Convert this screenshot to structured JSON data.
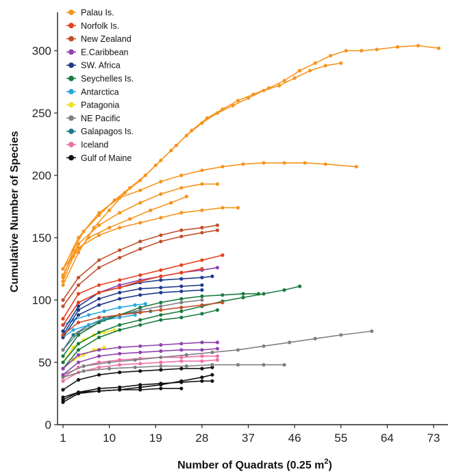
{
  "chart_data": {
    "type": "line",
    "xlabel": "Number of Quadrats (0.25 m",
    "xlabel_sup": "2",
    "xlabel_end": ")",
    "ylabel": "Cumulative Number of Species",
    "xlim": [
      0,
      75
    ],
    "ylim": [
      0,
      310
    ],
    "x_ticks": [
      1,
      10,
      19,
      28,
      37,
      46,
      55,
      64,
      73
    ],
    "y_ticks": [
      0,
      50,
      100,
      150,
      200,
      250,
      300
    ],
    "legend_position": "top-left",
    "series": [
      {
        "name": "Palau Is.",
        "color": "#f7941d",
        "curves": [
          {
            "x": [
              1,
              3,
              5,
              8,
              11,
              14,
              17,
              20,
              23,
              26,
              29,
              32,
              35,
              38,
              41,
              44,
              47,
              50,
              53,
              56,
              59,
              62,
              66,
              70,
              74
            ],
            "y": [
              118,
              140,
              155,
              168,
              180,
              190,
              200,
              212,
              224,
              236,
              246,
              253,
              260,
              265,
              270,
              276,
              284,
              290,
              296,
              300,
              300,
              301,
              303,
              304,
              302
            ]
          },
          {
            "x": [
              1,
              4,
              7,
              10,
              13,
              16,
              19,
              22,
              25,
              28,
              31,
              34,
              37,
              40,
              43,
              46,
              49,
              52,
              55
            ],
            "y": [
              112,
              138,
              158,
              172,
              186,
              196,
              208,
              220,
              232,
              242,
              250,
              256,
              262,
              268,
              272,
              278,
              284,
              288,
              290
            ]
          },
          {
            "x": [
              1,
              4,
              8,
              12,
              16,
              20,
              24,
              28,
              32,
              36,
              40,
              44,
              48,
              52,
              58
            ],
            "y": [
              125,
              150,
              170,
              182,
              188,
              195,
              200,
              204,
              207,
              209,
              210,
              210,
              210,
              209,
              207
            ]
          },
          {
            "x": [
              1,
              4,
              8,
              12,
              16,
              20,
              24,
              28,
              31
            ],
            "y": [
              120,
              145,
              160,
              170,
              178,
              185,
              190,
              193,
              193
            ]
          },
          {
            "x": [
              1,
              4,
              8,
              12,
              16,
              20,
              24,
              28,
              32,
              35
            ],
            "y": [
              125,
              142,
              152,
              158,
              162,
              166,
              170,
              172,
              174,
              174
            ]
          },
          {
            "x": [
              1,
              3,
              6,
              10,
              14,
              18,
              22,
              25
            ],
            "y": [
              115,
              135,
              150,
              158,
              165,
              172,
              178,
              183
            ]
          }
        ]
      },
      {
        "name": "Norfolk Is.",
        "color": "#e8401c",
        "curves": [
          {
            "x": [
              1,
              4,
              8,
              12,
              16,
              20,
              24,
              28,
              32
            ],
            "y": [
              85,
              105,
              112,
              116,
              120,
              124,
              128,
              132,
              136
            ]
          },
          {
            "x": [
              1,
              4,
              8,
              12,
              16,
              20,
              24,
              28
            ],
            "y": [
              80,
              98,
              106,
              110,
              115,
              119,
              122,
              125
            ]
          }
        ]
      },
      {
        "name": "New Zealand",
        "color": "#c1502c",
        "curves": [
          {
            "x": [
              1,
              4,
              8,
              12,
              16,
              20,
              24,
              28,
              31
            ],
            "y": [
              100,
              118,
              132,
              140,
              147,
              152,
              156,
              158,
              160
            ]
          },
          {
            "x": [
              1,
              4,
              8,
              12,
              16,
              20,
              24,
              28,
              31
            ],
            "y": [
              95,
              112,
              126,
              134,
              141,
              147,
              151,
              154,
              156
            ]
          },
          {
            "x": [
              1,
              4,
              8,
              12,
              16,
              20,
              24,
              28,
              32
            ],
            "y": [
              72,
              82,
              86,
              88,
              90,
              92,
              94,
              96,
              98
            ]
          }
        ]
      },
      {
        "name": "E.Caribbean",
        "color": "#8e44ad",
        "curves": [
          {
            "x": [
              1,
              4,
              8,
              12,
              16,
              20,
              24,
              28,
              31
            ],
            "y": [
              80,
              98,
              106,
              112,
              116,
              119,
              122,
              124,
              126
            ]
          },
          {
            "x": [
              1,
              4,
              8,
              12,
              16,
              20,
              24,
              28,
              31
            ],
            "y": [
              45,
              56,
              60,
              62,
              63,
              64,
              65,
              66,
              66
            ]
          },
          {
            "x": [
              1,
              4,
              8,
              12,
              16,
              20,
              24,
              28,
              31
            ],
            "y": [
              40,
              50,
              55,
              57,
              58,
              59,
              60,
              60,
              61
            ]
          }
        ]
      },
      {
        "name": "SW. Africa",
        "color": "#1f3c8c",
        "curves": [
          {
            "x": [
              1,
              4,
              8,
              12,
              16,
              20,
              24,
              28,
              30
            ],
            "y": [
              75,
              95,
              106,
              110,
              114,
              116,
              117,
              118,
              119
            ]
          },
          {
            "x": [
              1,
              4,
              8,
              12,
              16,
              20,
              24,
              28
            ],
            "y": [
              72,
              92,
              101,
              106,
              109,
              110,
              111,
              112
            ]
          },
          {
            "x": [
              1,
              4,
              8,
              12,
              16,
              20,
              24,
              28
            ],
            "y": [
              70,
              88,
              96,
              101,
              104,
              106,
              107,
              108
            ]
          }
        ]
      },
      {
        "name": "Seychelles Is.",
        "color": "#1a7a3e",
        "curves": [
          {
            "x": [
              1,
              4,
              8,
              12,
              16,
              20,
              24,
              28,
              32,
              36,
              40,
              44,
              47
            ],
            "y": [
              50,
              65,
              74,
              80,
              84,
              88,
              91,
              95,
              99,
              102,
              105,
              108,
              111
            ]
          },
          {
            "x": [
              1,
              4,
              8,
              12,
              16,
              20,
              24,
              28,
              32,
              36,
              39
            ],
            "y": [
              55,
              72,
              82,
              88,
              94,
              98,
              101,
              103,
              104,
              105,
              105
            ]
          },
          {
            "x": [
              1,
              4,
              8,
              12,
              16,
              20,
              24,
              28,
              31
            ],
            "y": [
              45,
              60,
              70,
              76,
              80,
              84,
              86,
              89,
              92
            ]
          }
        ]
      },
      {
        "name": "Antarctica",
        "color": "#29a8e0",
        "curves": [
          {
            "x": [
              1,
              3,
              6,
              9,
              12,
              15,
              17
            ],
            "y": [
              80,
              84,
              88,
              91,
              94,
              96,
              97
            ]
          },
          {
            "x": [
              1,
              3,
              6,
              9,
              12,
              15
            ],
            "y": [
              70,
              76,
              80,
              84,
              86,
              88
            ]
          }
        ]
      },
      {
        "name": "Patagonia",
        "color": "#f2e21b",
        "curves": [
          {
            "x": [
              1,
              3,
              5,
              7,
              9,
              11
            ],
            "y": [
              50,
              62,
              68,
              72,
              74,
              76
            ]
          },
          {
            "x": [
              1,
              3,
              5,
              7,
              9
            ],
            "y": [
              45,
              52,
              56,
              60,
              62
            ]
          }
        ]
      },
      {
        "name": "NE Pacific",
        "color": "#808080",
        "curves": [
          {
            "x": [
              1,
              5,
              10,
              15,
              20,
              25,
              30,
              35,
              40,
              45,
              50,
              55,
              61
            ],
            "y": [
              40,
              47,
              50,
              52,
              54,
              56,
              58,
              60,
              63,
              66,
              69,
              72,
              75
            ]
          },
          {
            "x": [
              1,
              5,
              10,
              15,
              20,
              25,
              30,
              35,
              40,
              44
            ],
            "y": [
              38,
              43,
              45,
              46,
              47,
              47,
              48,
              48,
              48,
              48
            ]
          },
          {
            "x": [
              1,
              4,
              8,
              12,
              16,
              20,
              24,
              28
            ],
            "y": [
              60,
              74,
              82,
              88,
              92,
              95,
              98,
              100
            ]
          }
        ]
      },
      {
        "name": "Galapagos Is.",
        "color": "#1b7a8c",
        "curves": [
          {
            "x": [
              1,
              3,
              6,
              9,
              12,
              15,
              18
            ],
            "y": [
              60,
              72,
              80,
              85,
              88,
              90,
              91
            ]
          }
        ]
      },
      {
        "name": "Iceland",
        "color": "#f06fa6",
        "curves": [
          {
            "x": [
              1,
              4,
              8,
              12,
              16,
              20,
              24,
              28,
              31
            ],
            "y": [
              38,
              46,
              50,
              52,
              53,
              54,
              54,
              55,
              55
            ]
          },
          {
            "x": [
              1,
              4,
              8,
              12,
              16,
              20,
              24,
              28,
              31
            ],
            "y": [
              35,
              42,
              46,
              48,
              49,
              50,
              51,
              51,
              52
            ]
          }
        ]
      },
      {
        "name": "Gulf of Maine",
        "color": "#111111",
        "curves": [
          {
            "x": [
              1,
              4,
              8,
              12,
              16,
              20,
              24,
              28,
              30
            ],
            "y": [
              18,
              25,
              27,
              28,
              30,
              32,
              35,
              38,
              40
            ]
          },
          {
            "x": [
              1,
              4,
              8,
              12,
              16,
              20,
              24
            ],
            "y": [
              22,
              26,
              27,
              28,
              28,
              29,
              29
            ]
          },
          {
            "x": [
              1,
              4,
              8,
              12,
              16,
              20,
              24,
              28,
              30
            ],
            "y": [
              28,
              36,
              40,
              42,
              43,
              44,
              45,
              45,
              46
            ]
          },
          {
            "x": [
              1,
              4,
              8,
              12,
              16,
              20,
              24,
              28,
              30
            ],
            "y": [
              20,
              26,
              29,
              30,
              32,
              33,
              34,
              35,
              35
            ]
          }
        ]
      }
    ]
  }
}
